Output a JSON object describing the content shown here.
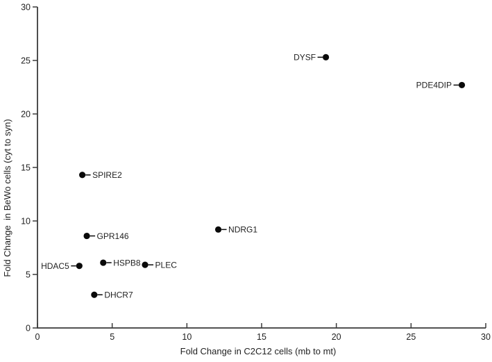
{
  "chart_data": {
    "type": "scatter",
    "title": "",
    "xlabel": "Fold Change in C2C12 cells (mb to mt)",
    "ylabel": "Fold Change  in BeWo cells (cyt to syn)",
    "xlim": [
      0,
      30
    ],
    "ylim": [
      0,
      30
    ],
    "xticks": [
      0,
      5,
      10,
      15,
      20,
      25,
      30
    ],
    "yticks": [
      0,
      5,
      10,
      15,
      20,
      25,
      30
    ],
    "grid": false,
    "legend": "none",
    "colors": {
      "marker": "#0a0a0a",
      "axis": "#3a3a3a",
      "text": "#1f1f1f",
      "background": "#ffffff"
    },
    "points": [
      {
        "label": "DYSF",
        "x": 19.3,
        "y": 25.3,
        "label_side": "left"
      },
      {
        "label": "PDE4DIP",
        "x": 28.4,
        "y": 22.7,
        "label_side": "left"
      },
      {
        "label": "SPIRE2",
        "x": 3.0,
        "y": 14.3,
        "label_side": "right"
      },
      {
        "label": "NDRG1",
        "x": 12.1,
        "y": 9.2,
        "label_side": "right"
      },
      {
        "label": "GPR146",
        "x": 3.3,
        "y": 8.6,
        "label_side": "right"
      },
      {
        "label": "HSPB8",
        "x": 4.4,
        "y": 6.1,
        "label_side": "right"
      },
      {
        "label": "PLEC",
        "x": 7.2,
        "y": 5.9,
        "label_side": "right"
      },
      {
        "label": "HDAC5",
        "x": 2.8,
        "y": 5.8,
        "label_side": "left"
      },
      {
        "label": "DHCR7",
        "x": 3.8,
        "y": 3.1,
        "label_side": "right"
      }
    ]
  }
}
